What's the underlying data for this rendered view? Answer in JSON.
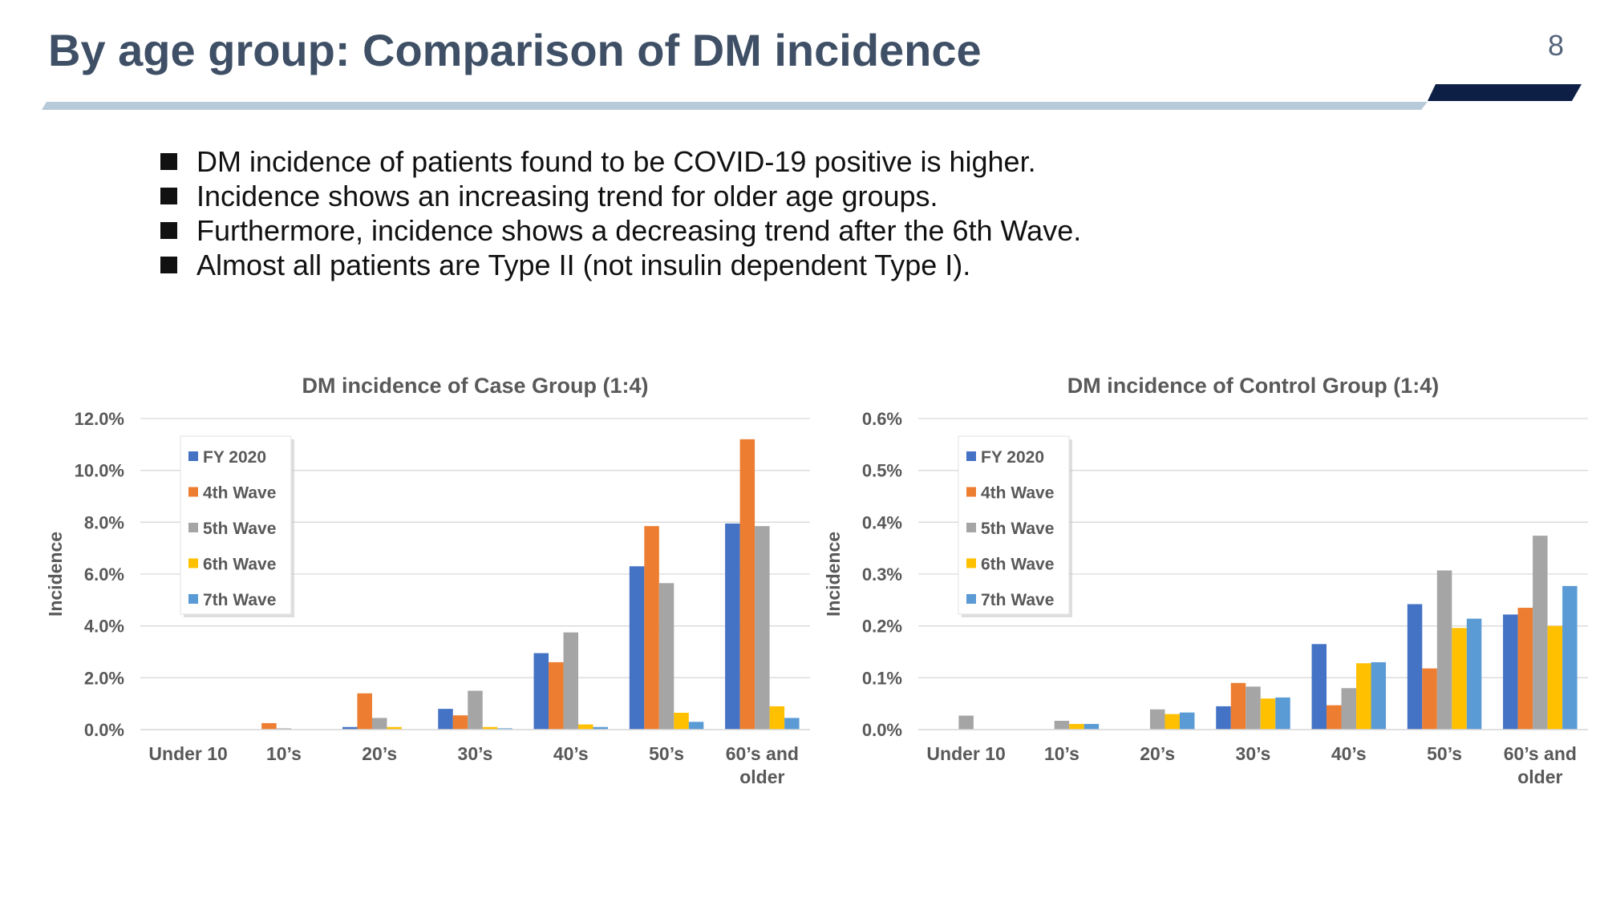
{
  "slide": {
    "title": "By age group: Comparison of DM incidence",
    "page_number": "8",
    "bullets": [
      "DM incidence of patients found to be COVID-19 positive is higher.",
      "Incidence shows an increasing trend for older age groups.",
      "Furthermore, incidence shows a decreasing trend after the 6th Wave.",
      "Almost all patients are Type II (not insulin dependent Type I)."
    ]
  },
  "colors": {
    "title": "#3f5066",
    "rule_light": "#b7cad9",
    "rule_dark": "#0d1f45",
    "series": [
      "#4472c4",
      "#ed7d31",
      "#a5a5a5",
      "#ffc000",
      "#5b9bd5"
    ]
  },
  "chart_data": [
    {
      "type": "bar",
      "title": "DM incidence of Case Group (1:4)",
      "ylabel": "Incidence",
      "xlabel": "",
      "ylim": [
        0,
        12
      ],
      "ytick_labels": [
        "0.0%",
        "2.0%",
        "4.0%",
        "6.0%",
        "8.0%",
        "10.0%",
        "12.0%"
      ],
      "categories": [
        [
          "Under 10"
        ],
        [
          "10’s"
        ],
        [
          "20’s"
        ],
        [
          "30’s"
        ],
        [
          "40’s"
        ],
        [
          "50’s"
        ],
        [
          "60’s and",
          "older"
        ]
      ],
      "legend_position": "top-left",
      "grid": true,
      "series": [
        {
          "name": "FY 2020",
          "values": [
            0,
            0,
            0.1,
            0.8,
            2.95,
            6.3,
            7.95
          ]
        },
        {
          "name": "4th Wave",
          "values": [
            0,
            0.25,
            1.4,
            0.55,
            2.6,
            7.85,
            11.2
          ]
        },
        {
          "name": "5th Wave",
          "values": [
            0,
            0.05,
            0.45,
            1.5,
            3.75,
            5.65,
            7.85
          ]
        },
        {
          "name": "6th Wave",
          "values": [
            0,
            0,
            0.1,
            0.1,
            0.2,
            0.65,
            0.9
          ]
        },
        {
          "name": "7th Wave",
          "values": [
            0,
            0,
            0,
            0.05,
            0.1,
            0.3,
            0.45
          ]
        }
      ]
    },
    {
      "type": "bar",
      "title": "DM incidence of Control Group (1:4)",
      "ylabel": "Incidence",
      "xlabel": "",
      "ylim": [
        0,
        0.6
      ],
      "ytick_labels": [
        "0.0%",
        "0.1%",
        "0.2%",
        "0.3%",
        "0.4%",
        "0.5%",
        "0.6%"
      ],
      "categories": [
        [
          "Under 10"
        ],
        [
          "10’s"
        ],
        [
          "20’s"
        ],
        [
          "30’s"
        ],
        [
          "40’s"
        ],
        [
          "50’s"
        ],
        [
          "60’s and",
          "older"
        ]
      ],
      "legend_position": "top-left",
      "grid": true,
      "series": [
        {
          "name": "FY 2020",
          "values": [
            0,
            0,
            0,
            0.045,
            0.165,
            0.242,
            0.222
          ]
        },
        {
          "name": "4th Wave",
          "values": [
            0,
            0,
            0,
            0.09,
            0.047,
            0.118,
            0.235
          ]
        },
        {
          "name": "5th Wave",
          "values": [
            0.027,
            0.017,
            0.039,
            0.083,
            0.08,
            0.307,
            0.374
          ]
        },
        {
          "name": "6th Wave",
          "values": [
            0,
            0.011,
            0.03,
            0.06,
            0.128,
            0.196,
            0.2
          ]
        },
        {
          "name": "7th Wave",
          "values": [
            0,
            0.011,
            0.033,
            0.062,
            0.13,
            0.214,
            0.277
          ]
        }
      ]
    }
  ]
}
